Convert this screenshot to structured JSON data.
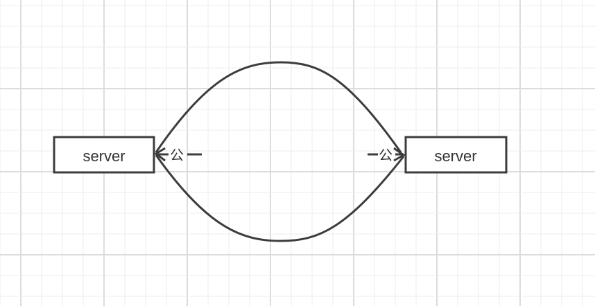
{
  "colors": {
    "background": "#ffffff",
    "grid_minor": "#ececec",
    "grid_major": "#dcdcdc",
    "stroke": "#3c3c3c",
    "text": "#333333"
  },
  "diagram": {
    "nodes": [
      {
        "id": "left",
        "label": "server"
      },
      {
        "id": "right",
        "label": "server"
      }
    ],
    "edges": [
      {
        "from": "right",
        "to": "left",
        "route": "upper-arc"
      },
      {
        "from": "left",
        "to": "right",
        "route": "lower-arc"
      }
    ],
    "port_labels": [
      {
        "node": "left",
        "text": "公"
      },
      {
        "node": "right",
        "text": "公"
      }
    ]
  }
}
